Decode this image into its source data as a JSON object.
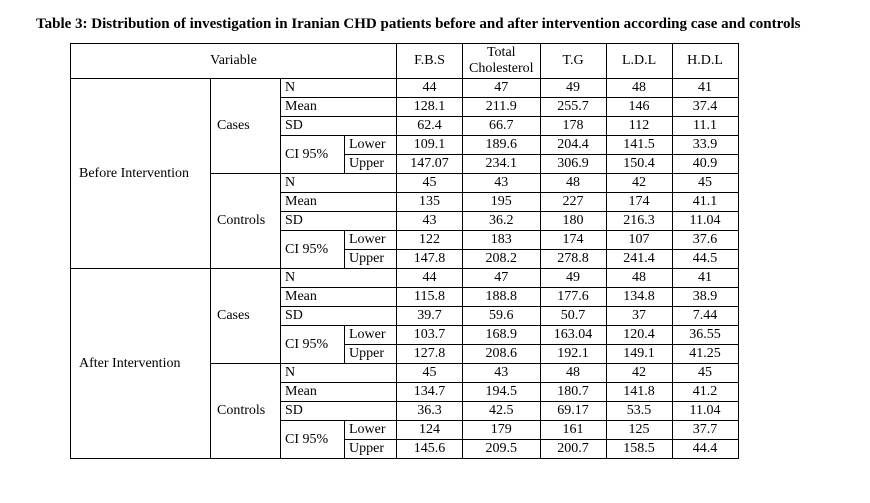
{
  "title": "Table 3: Distribution of investigation in Iranian CHD patients before and after intervention according case and controls",
  "headers": {
    "variable": "Variable",
    "fbs": "F.B.S",
    "tc": "Total Cholesterol",
    "tg": "T.G",
    "ldl": "L.D.L",
    "hdl": "H.D.L"
  },
  "stats": {
    "n": "N",
    "mean": "Mean",
    "sd": "SD",
    "ci": "CI 95%",
    "lower": "Lower",
    "upper": "Upper"
  },
  "periods": [
    "Before Intervention",
    "After Intervention"
  ],
  "groups": [
    "Cases",
    "Controls"
  ],
  "data": {
    "before": {
      "cases": {
        "n": {
          "fbs": "44",
          "tc": "47",
          "tg": "49",
          "ldl": "48",
          "hdl": "41"
        },
        "mean": {
          "fbs": "128.1",
          "tc": "211.9",
          "tg": "255.7",
          "ldl": "146",
          "hdl": "37.4"
        },
        "sd": {
          "fbs": "62.4",
          "tc": "66.7",
          "tg": "178",
          "ldl": "112",
          "hdl": "11.1"
        },
        "lo": {
          "fbs": "109.1",
          "tc": "189.6",
          "tg": "204.4",
          "ldl": "141.5",
          "hdl": "33.9"
        },
        "up": {
          "fbs": "147.07",
          "tc": "234.1",
          "tg": "306.9",
          "ldl": "150.4",
          "hdl": "40.9"
        }
      },
      "controls": {
        "n": {
          "fbs": "45",
          "tc": "43",
          "tg": "48",
          "ldl": "42",
          "hdl": "45"
        },
        "mean": {
          "fbs": "135",
          "tc": "195",
          "tg": "227",
          "ldl": "174",
          "hdl": "41.1"
        },
        "sd": {
          "fbs": "43",
          "tc": "36.2",
          "tg": "180",
          "ldl": "216.3",
          "hdl": "11.04"
        },
        "lo": {
          "fbs": "122",
          "tc": "183",
          "tg": "174",
          "ldl": "107",
          "hdl": "37.6"
        },
        "up": {
          "fbs": "147.8",
          "tc": "208.2",
          "tg": "278.8",
          "ldl": "241.4",
          "hdl": "44.5"
        }
      }
    },
    "after": {
      "cases": {
        "n": {
          "fbs": "44",
          "tc": "47",
          "tg": "49",
          "ldl": "48",
          "hdl": "41"
        },
        "mean": {
          "fbs": "115.8",
          "tc": "188.8",
          "tg": "177.6",
          "ldl": "134.8",
          "hdl": "38.9"
        },
        "sd": {
          "fbs": "39.7",
          "tc": "59.6",
          "tg": "50.7",
          "ldl": "37",
          "hdl": "7.44"
        },
        "lo": {
          "fbs": "103.7",
          "tc": "168.9",
          "tg": "163.04",
          "ldl": "120.4",
          "hdl": "36.55"
        },
        "up": {
          "fbs": "127.8",
          "tc": "208.6",
          "tg": "192.1",
          "ldl": "149.1",
          "hdl": "41.25"
        }
      },
      "controls": {
        "n": {
          "fbs": "45",
          "tc": "43",
          "tg": "48",
          "ldl": "42",
          "hdl": "45"
        },
        "mean": {
          "fbs": "134.7",
          "tc": "194.5",
          "tg": "180.7",
          "ldl": "141.8",
          "hdl": "41.2"
        },
        "sd": {
          "fbs": "36.3",
          "tc": "42.5",
          "tg": "69.17",
          "ldl": "53.5",
          "hdl": "11.04"
        },
        "lo": {
          "fbs": "124",
          "tc": "179",
          "tg": "161",
          "ldl": "125",
          "hdl": "37.7"
        },
        "up": {
          "fbs": "145.6",
          "tc": "209.5",
          "tg": "200.7",
          "ldl": "158.5",
          "hdl": "44.4"
        }
      }
    }
  }
}
